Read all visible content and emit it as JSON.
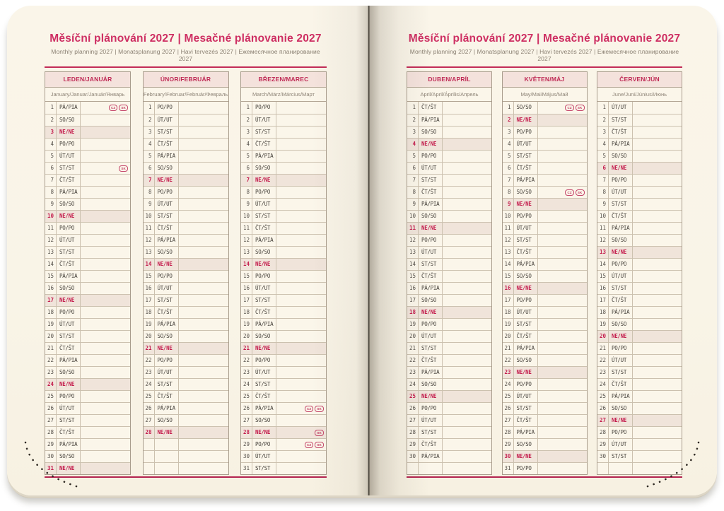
{
  "page_title": "Měsíční plánování 2027 | Mesačné plánovanie 2027",
  "page_subtitle": "Monthly planning 2027 | Monatsplanung 2027 | Havi tervezés 2027 | Ежемесячное планирование 2027",
  "badge_labels": [
    "CZ",
    "SK"
  ],
  "colors": {
    "accent_pink": "#ce2f63",
    "rule_crimson": "#c22b57",
    "sunday_red": "#c41e4e",
    "sunday_row_bg": "#f0e4da",
    "month_header_bg": "#f4e2dc",
    "page_cream": "#faf5e9",
    "grid_line": "#ccc1af"
  },
  "rows_per_month": 31,
  "months": [
    {
      "id": "leden",
      "page": "left",
      "name": "LEDEN/JANUÁR",
      "subtitle": "January/Januar/Január/Январь",
      "days": [
        [
          "PÁ/PIA",
          [
            "CZ",
            "SK"
          ]
        ],
        "SO/SO",
        "NE/NE",
        "PO/PO",
        "ÚT/UT",
        [
          "ST/ST",
          [
            "SK"
          ]
        ],
        "ČT/ŠT",
        "PÁ/PIA",
        "SO/SO",
        "NE/NE",
        "PO/PO",
        "ÚT/UT",
        "ST/ST",
        "ČT/ŠT",
        "PÁ/PIA",
        "SO/SO",
        "NE/NE",
        "PO/PO",
        "ÚT/UT",
        "ST/ST",
        "ČT/ŠT",
        "PÁ/PIA",
        "SO/SO",
        "NE/NE",
        "PO/PO",
        "ÚT/UT",
        "ST/ST",
        "ČT/ŠT",
        "PÁ/PIA",
        "SO/SO",
        "NE/NE"
      ]
    },
    {
      "id": "unor",
      "page": "left",
      "name": "ÚNOR/FEBRUÁR",
      "subtitle": "February/Februar/Február/Февраль",
      "days": [
        "PO/PO",
        "ÚT/UT",
        "ST/ST",
        "ČT/ŠT",
        "PÁ/PIA",
        "SO/SO",
        "NE/NE",
        "PO/PO",
        "ÚT/UT",
        "ST/ST",
        "ČT/ŠT",
        "PÁ/PIA",
        "SO/SO",
        "NE/NE",
        "PO/PO",
        "ÚT/UT",
        "ST/ST",
        "ČT/ŠT",
        "PÁ/PIA",
        "SO/SO",
        "NE/NE",
        "PO/PO",
        "ÚT/UT",
        "ST/ST",
        "ČT/ŠT",
        "PÁ/PIA",
        "SO/SO",
        "NE/NE"
      ]
    },
    {
      "id": "brezen",
      "page": "left",
      "name": "BŘEZEN/MAREC",
      "subtitle": "March/März/Március/Март",
      "days": [
        "PO/PO",
        "ÚT/UT",
        "ST/ST",
        "ČT/ŠT",
        "PÁ/PIA",
        "SO/SO",
        "NE/NE",
        "PO/PO",
        "ÚT/UT",
        "ST/ST",
        "ČT/ŠT",
        "PÁ/PIA",
        "SO/SO",
        "NE/NE",
        "PO/PO",
        "ÚT/UT",
        "ST/ST",
        "ČT/ŠT",
        "PÁ/PIA",
        "SO/SO",
        "NE/NE",
        "PO/PO",
        "ÚT/UT",
        "ST/ST",
        "ČT/ŠT",
        [
          "PÁ/PIA",
          [
            "CZ",
            "SK"
          ]
        ],
        "SO/SO",
        [
          "NE/NE",
          [
            "SK"
          ]
        ],
        [
          "PO/PO",
          [
            "CZ",
            "SK"
          ]
        ],
        "ÚT/UT",
        "ST/ST"
      ]
    },
    {
      "id": "duben",
      "page": "right",
      "name": "DUBEN/APRÍL",
      "subtitle": "April/April/Április/Апрель",
      "days": [
        "ČT/ŠT",
        "PÁ/PIA",
        "SO/SO",
        "NE/NE",
        "PO/PO",
        "ÚT/UT",
        "ST/ST",
        "ČT/ŠT",
        "PÁ/PIA",
        "SO/SO",
        "NE/NE",
        "PO/PO",
        "ÚT/UT",
        "ST/ST",
        "ČT/ŠT",
        "PÁ/PIA",
        "SO/SO",
        "NE/NE",
        "PO/PO",
        "ÚT/UT",
        "ST/ST",
        "ČT/ŠT",
        "PÁ/PIA",
        "SO/SO",
        "NE/NE",
        "PO/PO",
        "ÚT/UT",
        "ST/ST",
        "ČT/ŠT",
        "PÁ/PIA"
      ]
    },
    {
      "id": "kveten",
      "page": "right",
      "name": "KVĚTEN/MÁJ",
      "subtitle": "May/Mai/Május/Май",
      "days": [
        [
          "SO/SO",
          [
            "CZ",
            "SK"
          ]
        ],
        "NE/NE",
        "PO/PO",
        "ÚT/UT",
        "ST/ST",
        "ČT/ŠT",
        "PÁ/PIA",
        [
          "SO/SO",
          [
            "CZ",
            "SK"
          ]
        ],
        "NE/NE",
        "PO/PO",
        "ÚT/UT",
        "ST/ST",
        "ČT/ŠT",
        "PÁ/PIA",
        "SO/SO",
        "NE/NE",
        "PO/PO",
        "ÚT/UT",
        "ST/ST",
        "ČT/ŠT",
        "PÁ/PIA",
        "SO/SO",
        "NE/NE",
        "PO/PO",
        "ÚT/UT",
        "ST/ST",
        "ČT/ŠT",
        "PÁ/PIA",
        "SO/SO",
        "NE/NE",
        "PO/PO"
      ]
    },
    {
      "id": "cerven",
      "page": "right",
      "name": "ČERVEN/JÚN",
      "subtitle": "June/Juni/Június/Июнь",
      "days": [
        "ÚT/UT",
        "ST/ST",
        "ČT/ŠT",
        "PÁ/PIA",
        "SO/SO",
        "NE/NE",
        "PO/PO",
        "ÚT/UT",
        "ST/ST",
        "ČT/ŠT",
        "PÁ/PIA",
        "SO/SO",
        "NE/NE",
        "PO/PO",
        "ÚT/UT",
        "ST/ST",
        "ČT/ŠT",
        "PÁ/PIA",
        "SO/SO",
        "NE/NE",
        "PO/PO",
        "ÚT/UT",
        "ST/ST",
        "ČT/ŠT",
        "PÁ/PIA",
        "SO/SO",
        "NE/NE",
        "PO/PO",
        "ÚT/UT",
        "ST/ST"
      ]
    }
  ]
}
